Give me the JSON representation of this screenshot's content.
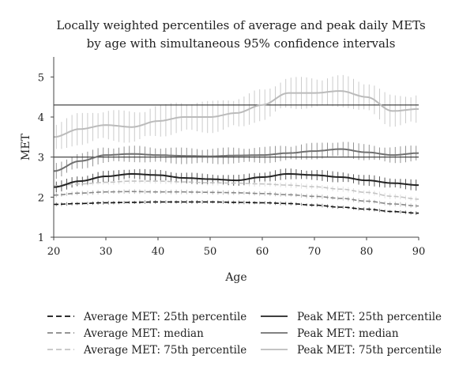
{
  "chart_data": {
    "type": "line",
    "title_lines": [
      "Locally weighted percentiles of average and peak daily METs",
      "by age with simultaneous 95% confidence intervals"
    ],
    "xlabel": "Age",
    "ylabel": "MET",
    "xlim": [
      20,
      90
    ],
    "ylim": [
      1,
      5.5
    ],
    "xticks": [
      "20",
      "30",
      "40",
      "50",
      "60",
      "70",
      "80",
      "90"
    ],
    "yticks": [
      "1",
      "2",
      "3",
      "4",
      "5"
    ],
    "reference_lines": [
      3,
      4.3
    ],
    "legend_position": "bottom",
    "series": [
      {
        "name": "Average MET: 25th percentile",
        "style": "dashed",
        "color": "#111111",
        "x": [
          20,
          25,
          30,
          35,
          40,
          45,
          50,
          55,
          60,
          65,
          70,
          75,
          80,
          85,
          90
        ],
        "y": [
          1.82,
          1.84,
          1.86,
          1.87,
          1.88,
          1.88,
          1.88,
          1.87,
          1.86,
          1.84,
          1.8,
          1.75,
          1.7,
          1.64,
          1.6
        ],
        "ci_halfwidth": 0.04
      },
      {
        "name": "Average MET: median",
        "style": "dashed",
        "color": "#888888",
        "x": [
          20,
          25,
          30,
          35,
          40,
          45,
          50,
          55,
          60,
          65,
          70,
          75,
          80,
          85,
          90
        ],
        "y": [
          2.05,
          2.1,
          2.13,
          2.14,
          2.13,
          2.13,
          2.12,
          2.11,
          2.09,
          2.06,
          2.02,
          1.97,
          1.9,
          1.83,
          1.78
        ],
        "ci_halfwidth": 0.05
      },
      {
        "name": "Average MET: 75th percentile",
        "style": "dashed",
        "color": "#c4c4c4",
        "x": [
          20,
          25,
          30,
          35,
          40,
          45,
          50,
          55,
          60,
          65,
          70,
          75,
          80,
          85,
          90
        ],
        "y": [
          2.28,
          2.33,
          2.37,
          2.4,
          2.4,
          2.38,
          2.36,
          2.35,
          2.33,
          2.3,
          2.26,
          2.2,
          2.12,
          2.02,
          1.95
        ],
        "ci_halfwidth": 0.06
      },
      {
        "name": "Peak MET: 25th percentile",
        "style": "solid",
        "color": "#222222",
        "x": [
          20,
          25,
          30,
          35,
          40,
          45,
          50,
          55,
          60,
          65,
          70,
          75,
          80,
          85,
          90
        ],
        "y": [
          2.25,
          2.4,
          2.52,
          2.58,
          2.55,
          2.48,
          2.45,
          2.42,
          2.5,
          2.58,
          2.55,
          2.5,
          2.42,
          2.35,
          2.3
        ],
        "ci_halfwidth": 0.12
      },
      {
        "name": "Peak MET: median",
        "style": "solid",
        "color": "#707070",
        "x": [
          20,
          25,
          30,
          35,
          40,
          45,
          50,
          55,
          60,
          65,
          70,
          75,
          80,
          85,
          90
        ],
        "y": [
          2.65,
          2.9,
          3.05,
          3.08,
          3.05,
          3.03,
          3.02,
          3.04,
          3.05,
          3.1,
          3.15,
          3.2,
          3.12,
          3.05,
          3.1
        ],
        "ci_halfwidth": 0.18
      },
      {
        "name": "Peak MET: 75th percentile",
        "style": "solid",
        "color": "#bbbbbb",
        "x": [
          20,
          25,
          30,
          35,
          40,
          45,
          50,
          55,
          60,
          65,
          70,
          75,
          80,
          85,
          90
        ],
        "y": [
          3.5,
          3.7,
          3.8,
          3.75,
          3.9,
          4.0,
          4.0,
          4.1,
          4.3,
          4.6,
          4.6,
          4.65,
          4.5,
          4.15,
          4.2
        ],
        "ci_halfwidth": 0.35
      }
    ]
  }
}
